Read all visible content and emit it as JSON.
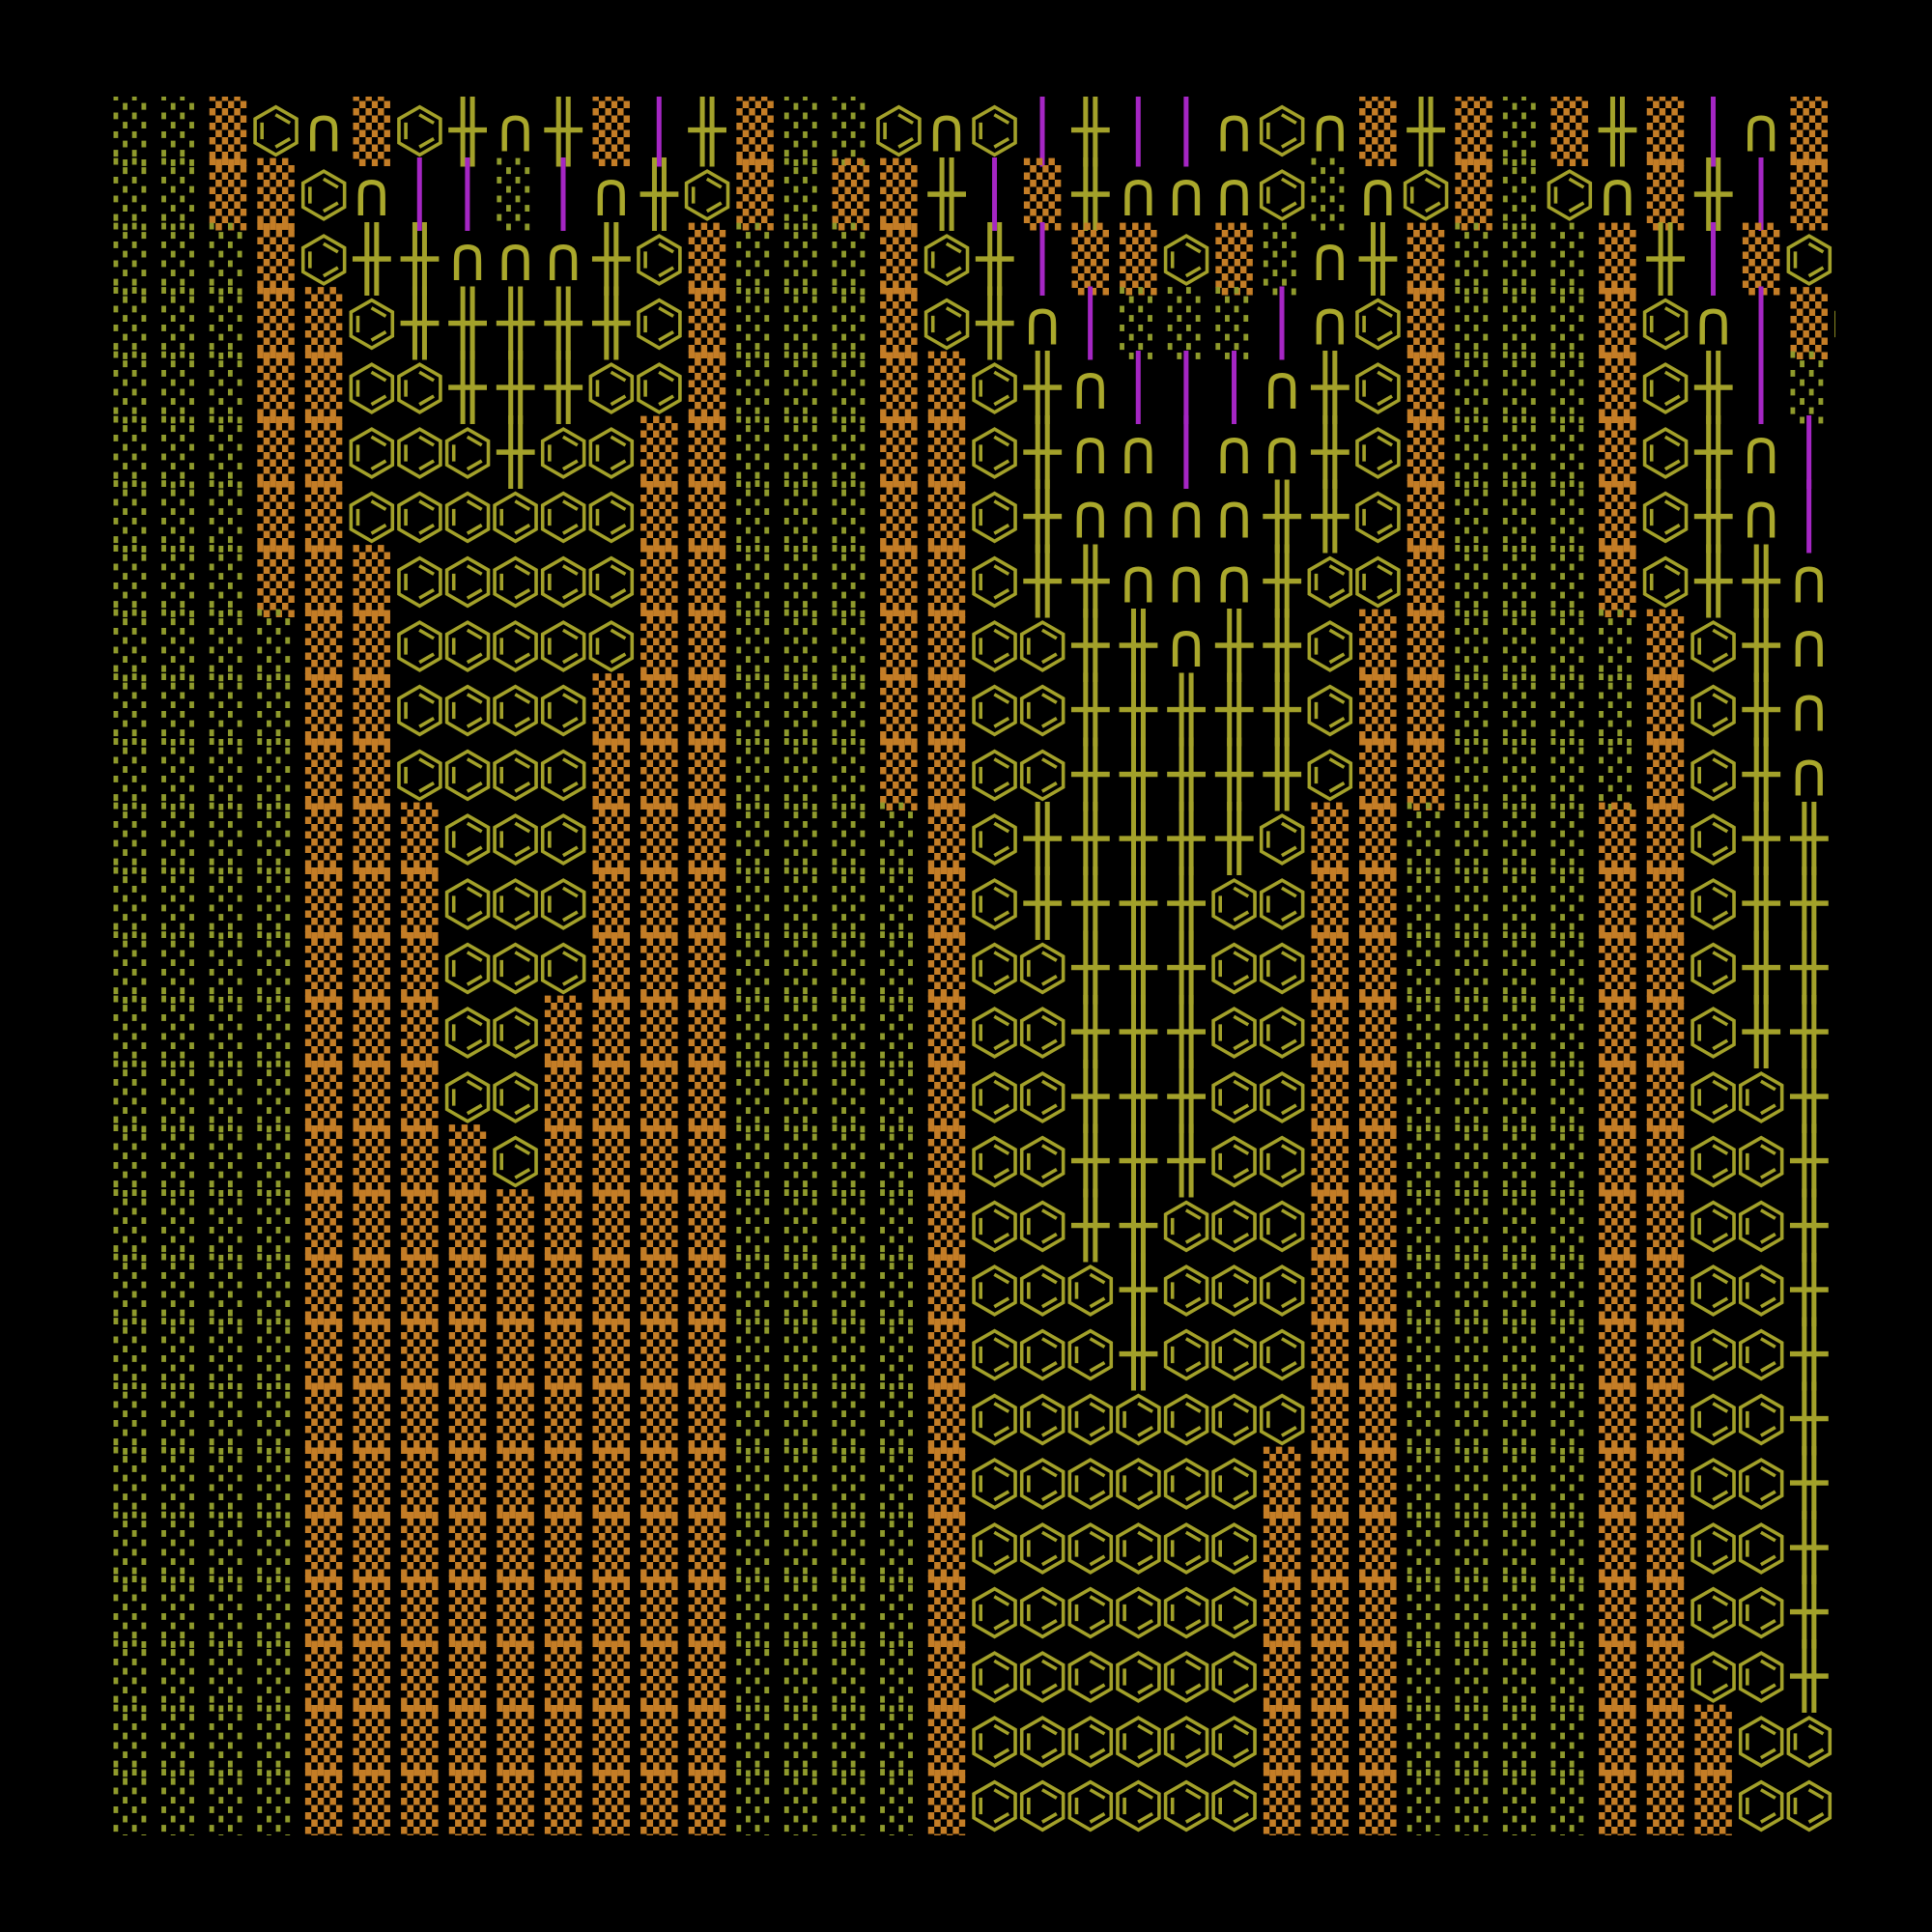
{
  "rows": [
    "░░▒⌬∩▒⌬╫∩╫▒│╫▒░░⌬∩⌬│╫││∩⌬∩▒╫▒░▒╫▒│∩▒▒",
    "░░▒▒⌬∩││░│∩╫⌬▒░▒▒╫│▒╫∩∩∩⌬░∩⌬▒░⌬∩▒╫│▒▒",
    "░░░▒⌬╫╫∩∩∩╫⌬▒░░░▒⌬╫│▒▒⌬▒░∩╫▒░░░▒╫│▒⌬▒",
    "░░░▒▒⌬╫╫╫╫╫⌬▒░░░▒⌬╫∩│░░░│∩⌬▒░░░▒⌬∩│▒⌬",
    "░░░▒▒⌬⌬╫╫╫⌬⌬▒░░░▒▒⌬╫∩│││∩╫⌬▒░░░▒⌬╫│░▒",
    "░░░▒▒⌬⌬⌬╫⌬⌬▒▒░░░▒▒⌬╫∩∩│∩∩╫⌬▒░░░▒⌬╫∩││",
    "░░░▒▒⌬⌬⌬⌬⌬⌬▒▒░░░▒▒⌬╫∩∩∩∩╫╫⌬▒░░░▒⌬╫∩││",
    "░░░▒▒▒⌬⌬⌬⌬⌬▒▒░░░▒▒⌬╫╫∩∩∩╫⌬⌬▒░░░▒⌬╫╫∩│",
    "░░░░▒▒⌬⌬⌬⌬⌬▒▒░░░▒▒⌬⌬╫╫∩╫╫⌬▒▒░░░░▒⌬╫∩∩",
    "░░░░▒▒⌬⌬⌬⌬▒▒▒░░░▒▒⌬⌬╫╫╫╫╫⌬▒▒░░░░▒⌬╫∩∩",
    "░░░░▒▒⌬⌬⌬⌬▒▒▒░░░▒▒⌬⌬╫╫╫╫╫⌬▒▒░░░░▒⌬╫∩∩",
    "░░░░▒▒▒⌬⌬⌬▒▒▒░░░░▒⌬╫╫╫╫╫⌬▒▒░░░░▒▒⌬╫╫∩",
    "░░░░▒▒▒⌬⌬⌬▒▒▒░░░░▒⌬╫╫╫╫⌬⌬▒▒░░░░▒▒⌬╫╫∩",
    "░░░░▒▒▒⌬⌬⌬▒▒▒░░░░▒⌬⌬╫╫╫⌬⌬▒▒░░░░▒▒⌬╫╫∩",
    "░░░░▒▒▒⌬⌬▒▒▒▒░░░░▒⌬⌬╫╫╫⌬⌬▒▒░░░░▒▒⌬╫╫░",
    "░░░░▒▒▒⌬⌬▒▒▒▒░░░░▒⌬⌬╫╫╫⌬⌬▒▒░░░░▒▒⌬⌬╫░",
    "░░░░▒▒▒▒⌬▒▒▒▒░░░░▒⌬⌬╫╫╫⌬⌬▒▒░░░░▒▒⌬⌬╫░",
    "░░░░▒▒▒▒▒▒▒▒▒░░░░▒⌬⌬╫╫⌬⌬⌬▒▒░░░░▒▒⌬⌬╫░",
    "░░░░▒▒▒▒▒▒▒▒▒░░░░▒⌬⌬⌬╫⌬⌬⌬▒▒░░░░▒▒⌬⌬╫░",
    "░░░░▒▒▒▒▒▒▒▒▒░░░░▒⌬⌬⌬╫⌬⌬⌬▒▒░░░░▒▒⌬⌬╫░",
    "░░░░▒▒▒▒▒▒▒▒▒░░░░▒⌬⌬⌬⌬⌬⌬⌬▒▒░░░░▒▒⌬⌬╫░",
    "░░░░▒▒▒▒▒▒▒▒▒░░░░▒⌬⌬⌬⌬⌬⌬▒▒▒░░░░▒▒⌬⌬╫░",
    "░░░░▒▒▒▒▒▒▒▒▒░░░░▒⌬⌬⌬⌬⌬⌬▒▒▒░░░░▒▒⌬⌬╫░",
    "░░░░▒▒▒▒▒▒▒▒▒░░░░▒⌬⌬⌬⌬⌬⌬▒▒▒░░░░▒▒⌬⌬╫░",
    "░░░░▒▒▒▒▒▒▒▒▒░░░░▒⌬⌬⌬⌬⌬⌬▒▒▒░░░░▒▒⌬⌬╫░",
    "░░░░▒▒▒▒▒▒▒▒▒░░░░▒⌬⌬⌬⌬⌬⌬▒▒▒░░░░▒▒▒⌬⌬░",
    "░░░░▒▒▒▒▒▒▒▒▒░░░░▒⌬⌬⌬⌬⌬⌬▒▒▒░░░░▒▒▒⌬⌬░"
  ],
  "colors": {
    "░": "#8f9a2c",
    "▒": "#c47d26",
    "⌬": "#a3a12a",
    "∩": "#aaa82c",
    "╫": "#a3a12a",
    "│": "#a526c4"
  }
}
